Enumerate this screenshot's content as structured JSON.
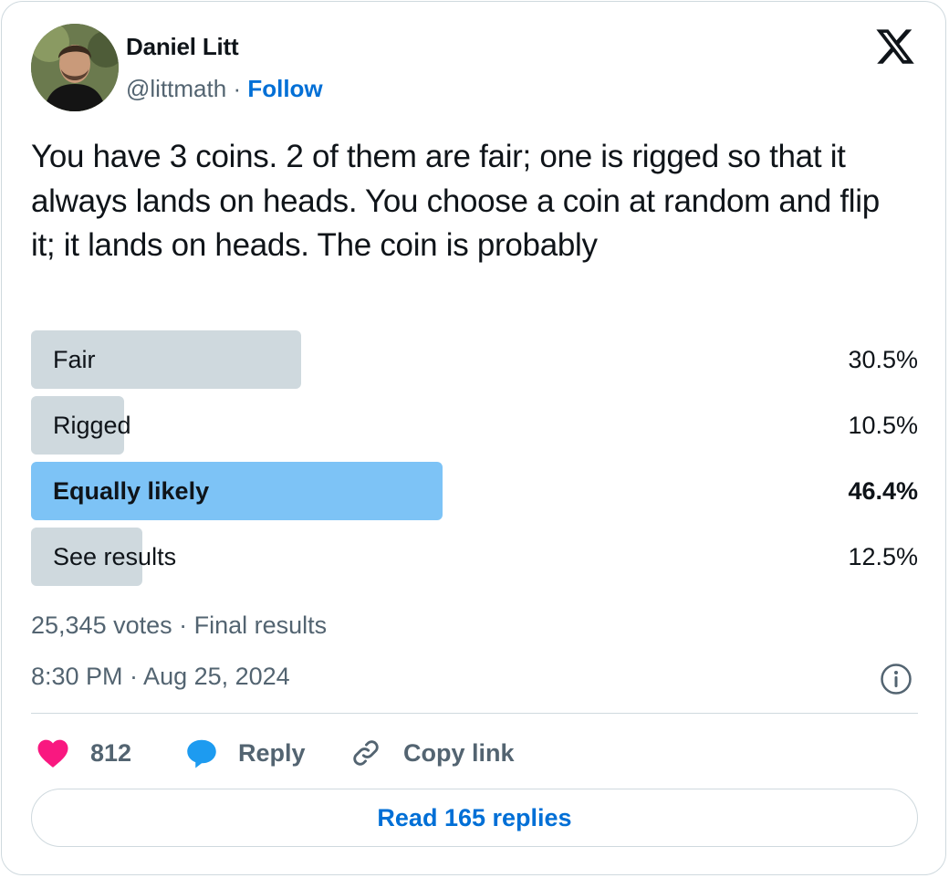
{
  "author": {
    "name": "Daniel Litt",
    "handle": "@littmath",
    "separator": "·",
    "follow_label": "Follow"
  },
  "brand_icon": "x-logo-icon",
  "tweet": {
    "text": "You have 3 coins. 2 of them are fair; one is rigged so that it always lands on heads. You choose a coin at random and flip it; it lands on heads. The coin is probably"
  },
  "poll": {
    "options": [
      {
        "label": "Fair",
        "percent": "30.5%",
        "share": 30.5,
        "winner": false
      },
      {
        "label": "Rigged",
        "percent": "10.5%",
        "share": 10.5,
        "winner": false
      },
      {
        "label": "Equally likely",
        "percent": "46.4%",
        "share": 46.4,
        "winner": true
      },
      {
        "label": "See results",
        "percent": "12.5%",
        "share": 12.5,
        "winner": false
      }
    ],
    "meta": "25,345 votes · Final results"
  },
  "timestamp": "8:30 PM · Aug 25, 2024",
  "actions": {
    "like_count": "812",
    "reply_label": "Reply",
    "copy_link_label": "Copy link"
  },
  "read_replies_label": "Read 165 replies",
  "colors": {
    "text": "#0f1419",
    "muted": "#536471",
    "link": "#006fd6",
    "bar": "#cfd9de",
    "bar_winner": "#7dc3f6",
    "like": "#f91880",
    "reply": "#1d9bf0"
  }
}
